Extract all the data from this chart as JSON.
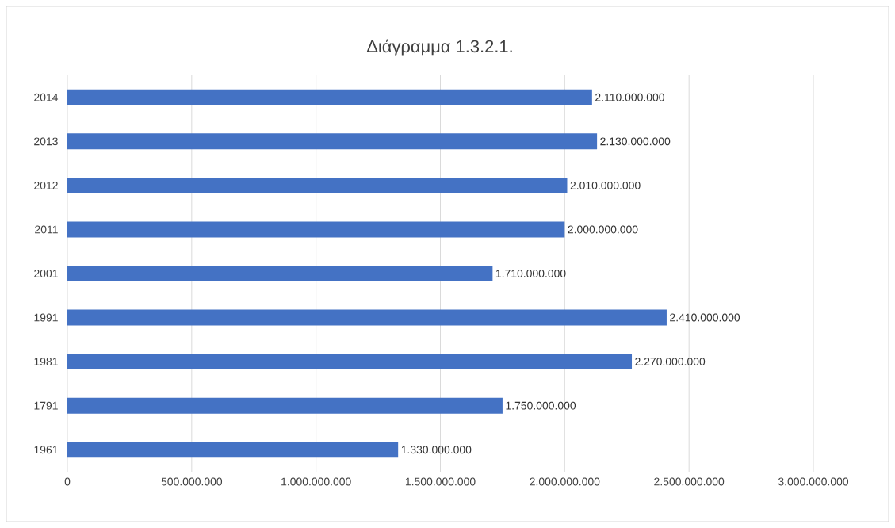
{
  "chart_data": {
    "type": "bar",
    "orientation": "horizontal",
    "title": "Διάγραμμα 1.3.2.1.",
    "categories": [
      "2014",
      "2013",
      "2012",
      "2011",
      "2001",
      "1991",
      "1981",
      "1791",
      "1961"
    ],
    "values": [
      2110000000,
      2130000000,
      2010000000,
      2000000000,
      1710000000,
      2410000000,
      2270000000,
      1750000000,
      1330000000
    ],
    "value_labels": [
      "2.110.000.000",
      "2.130.000.000",
      "2.010.000.000",
      "2.000.000.000",
      "1.710.000.000",
      "2.410.000.000",
      "2.270.000.000",
      "1.750.000.000",
      "1.330.000.000"
    ],
    "color": "#4472c4",
    "xlim": [
      0,
      3000000000
    ],
    "xticks": [
      0,
      {
        "value": 500000000,
        "label": "500.000.000"
      },
      {
        "value": 1000000000,
        "label": "1.000.000.000"
      },
      {
        "value": 1500000000,
        "label": "1.500.000.000"
      },
      {
        "value": 2000000000,
        "label": "2.000.000.000"
      },
      {
        "value": 2500000000,
        "label": "2.500.000.000"
      },
      {
        "value": 3000000000,
        "label": "3.000.000.000"
      }
    ],
    "grid": "x"
  }
}
